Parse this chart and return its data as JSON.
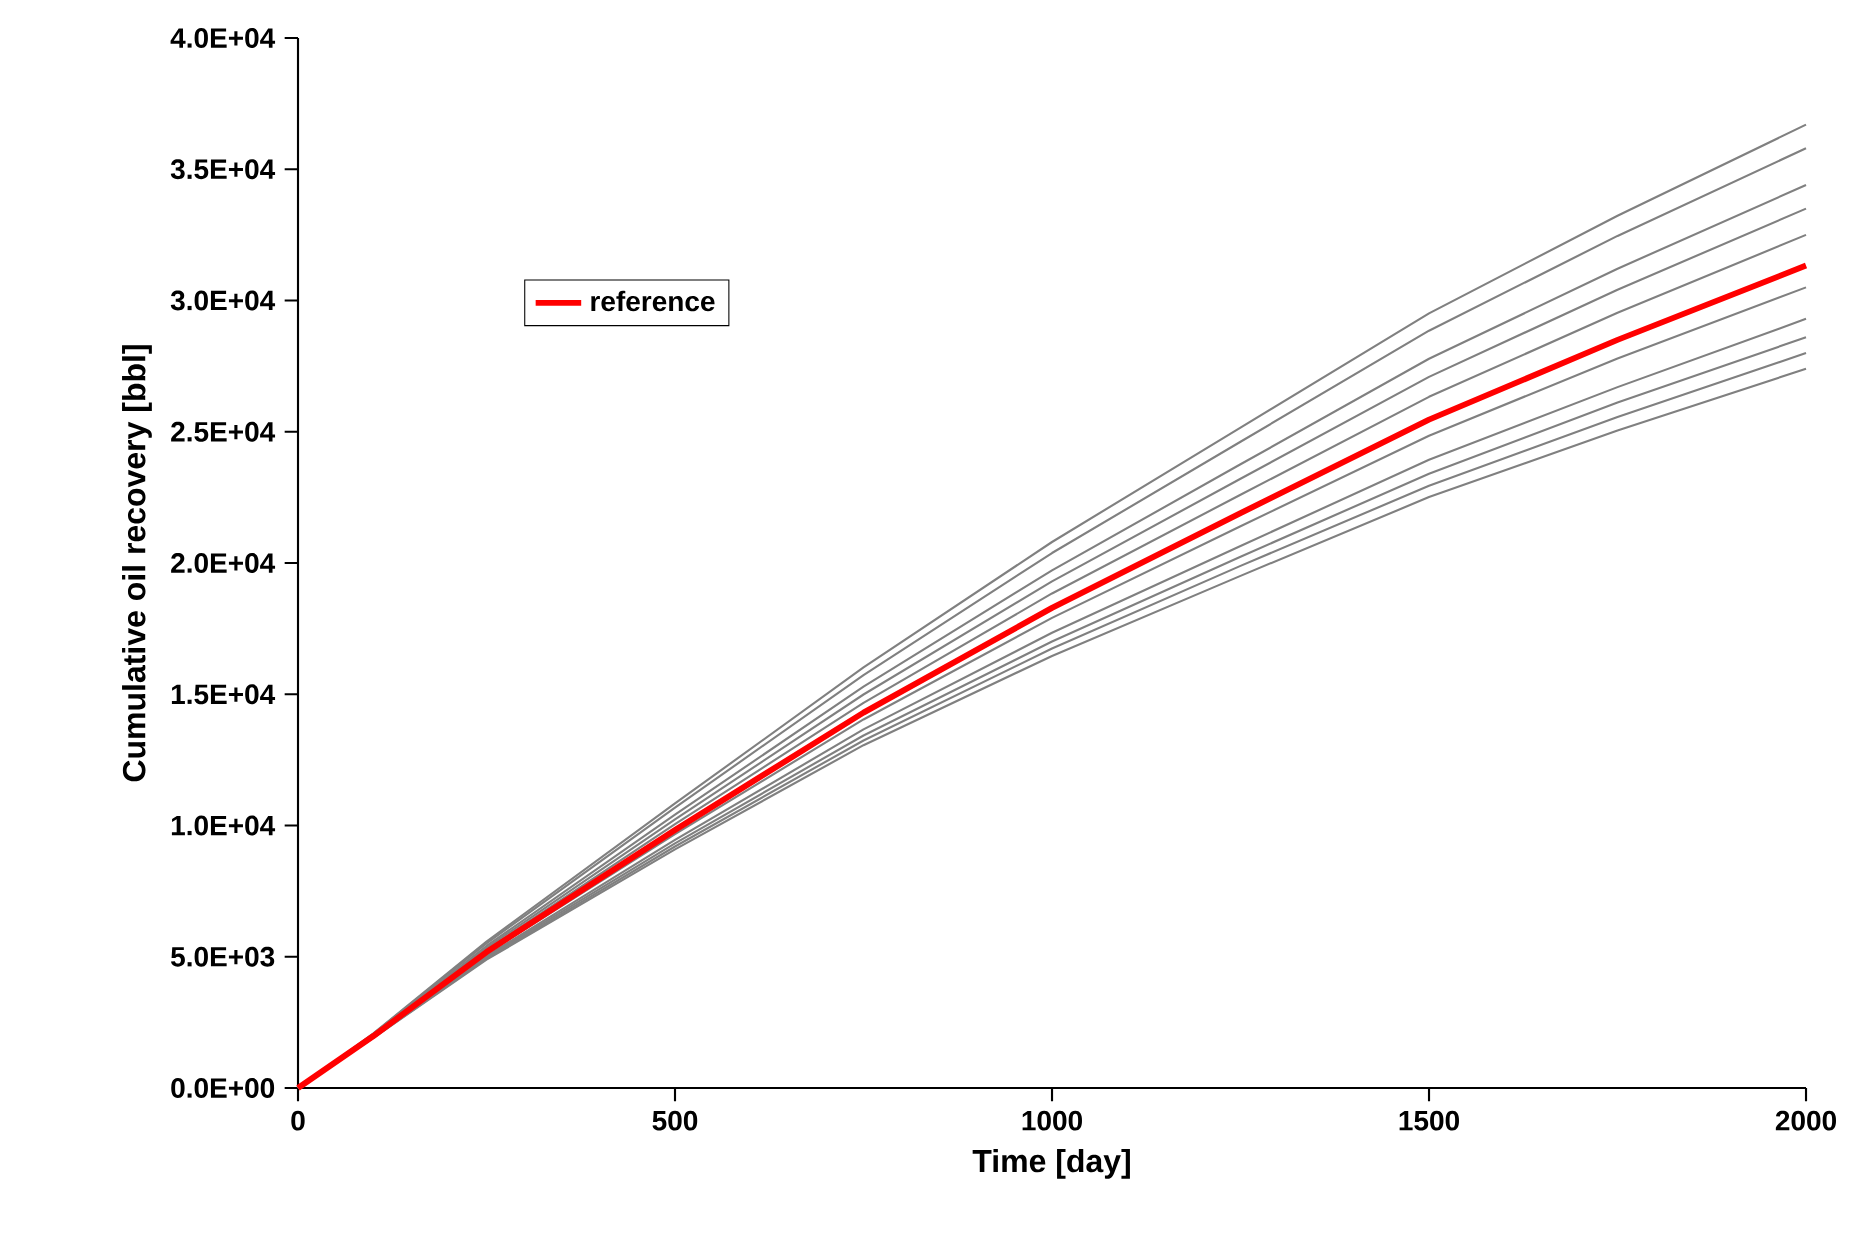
{
  "chart_data": {
    "type": "line",
    "xlabel": "Time [day]",
    "ylabel": "Cumulative oil recovery [bbl]",
    "x": [
      0,
      100,
      250,
      500,
      750,
      1000,
      1250,
      1500,
      1750,
      2000
    ],
    "series": [
      {
        "color": "#808080",
        "values": [
          0,
          2080,
          5580,
          10840,
          16020,
          20800,
          25160,
          29510,
          33230,
          36700
        ]
      },
      {
        "color": "#808080",
        "values": [
          0,
          2065,
          5510,
          10680,
          15730,
          20380,
          24620,
          28850,
          32460,
          35800
        ]
      },
      {
        "color": "#808080",
        "values": [
          0,
          2040,
          5410,
          10410,
          15290,
          19720,
          23760,
          27780,
          31210,
          34400
        ]
      },
      {
        "color": "#808080",
        "values": [
          0,
          2020,
          5340,
          10230,
          14990,
          19300,
          23210,
          27090,
          30410,
          33500
        ]
      },
      {
        "color": "#808080",
        "values": [
          0,
          2000,
          5270,
          10050,
          14670,
          18840,
          22600,
          26330,
          29530,
          32500
        ]
      },
      {
        "color": "#808080",
        "values": [
          0,
          1960,
          5120,
          9670,
          14040,
          17910,
          21400,
          24850,
          27790,
          30500
        ]
      },
      {
        "color": "#808080",
        "values": [
          0,
          1940,
          5030,
          9450,
          13660,
          17340,
          20650,
          23930,
          26700,
          29300
        ]
      },
      {
        "color": "#808080",
        "values": [
          0,
          1930,
          4980,
          9320,
          13430,
          17010,
          20240,
          23400,
          26110,
          28600
        ]
      },
      {
        "color": "#808080",
        "values": [
          0,
          1920,
          4930,
          9200,
          13240,
          16740,
          19890,
          22940,
          25560,
          28000
        ]
      },
      {
        "color": "#808080",
        "values": [
          0,
          1910,
          4890,
          9090,
          13060,
          16460,
          19510,
          22510,
          25050,
          27400
        ]
      },
      {
        "name": "reference",
        "color": "#ff0000",
        "values": [
          0,
          1980,
          5180,
          9830,
          14300,
          18290,
          21900,
          25460,
          28500,
          31330
        ]
      }
    ],
    "xlim": [
      0,
      2000
    ],
    "xticks": [
      0,
      500,
      1000,
      1500,
      2000
    ],
    "ylim": [
      0,
      40000
    ],
    "yticks": [
      {
        "value": 0,
        "label": "0.0E+00"
      },
      {
        "value": 5000,
        "label": "5.0E+03"
      },
      {
        "value": 10000,
        "label": "1.0E+04"
      },
      {
        "value": 15000,
        "label": "1.5E+04"
      },
      {
        "value": 20000,
        "label": "2.0E+04"
      },
      {
        "value": 25000,
        "label": "2.5E+04"
      },
      {
        "value": 30000,
        "label": "3.0E+04"
      },
      {
        "value": 35000,
        "label": "3.5E+04"
      },
      {
        "value": 40000,
        "label": "4.0E+04"
      }
    ],
    "legend": "top left",
    "marker": "none",
    "line_style": "solid"
  }
}
